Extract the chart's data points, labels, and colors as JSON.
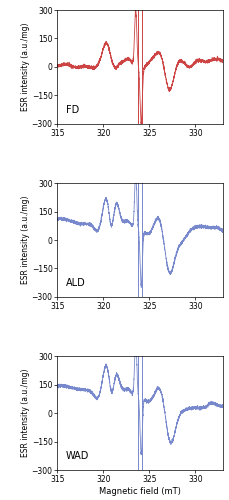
{
  "xlim": [
    315,
    333
  ],
  "ylim": [
    -300,
    300
  ],
  "yticks": [
    -300,
    -150,
    0,
    150,
    300
  ],
  "xticks": [
    315,
    320,
    325,
    330
  ],
  "xlabel": "Magnetic field (mT)",
  "ylabel": "ESR intensity (a.u./mg)",
  "vline1": 323.7,
  "vline2": 324.15,
  "labels": [
    "FD",
    "ALD",
    "WAD"
  ],
  "color_fd": "#cc4444",
  "color_ald": "#7788cc",
  "color_wad": "#7788cc",
  "figsize": [
    2.3,
    5.0
  ],
  "dpi": 100
}
